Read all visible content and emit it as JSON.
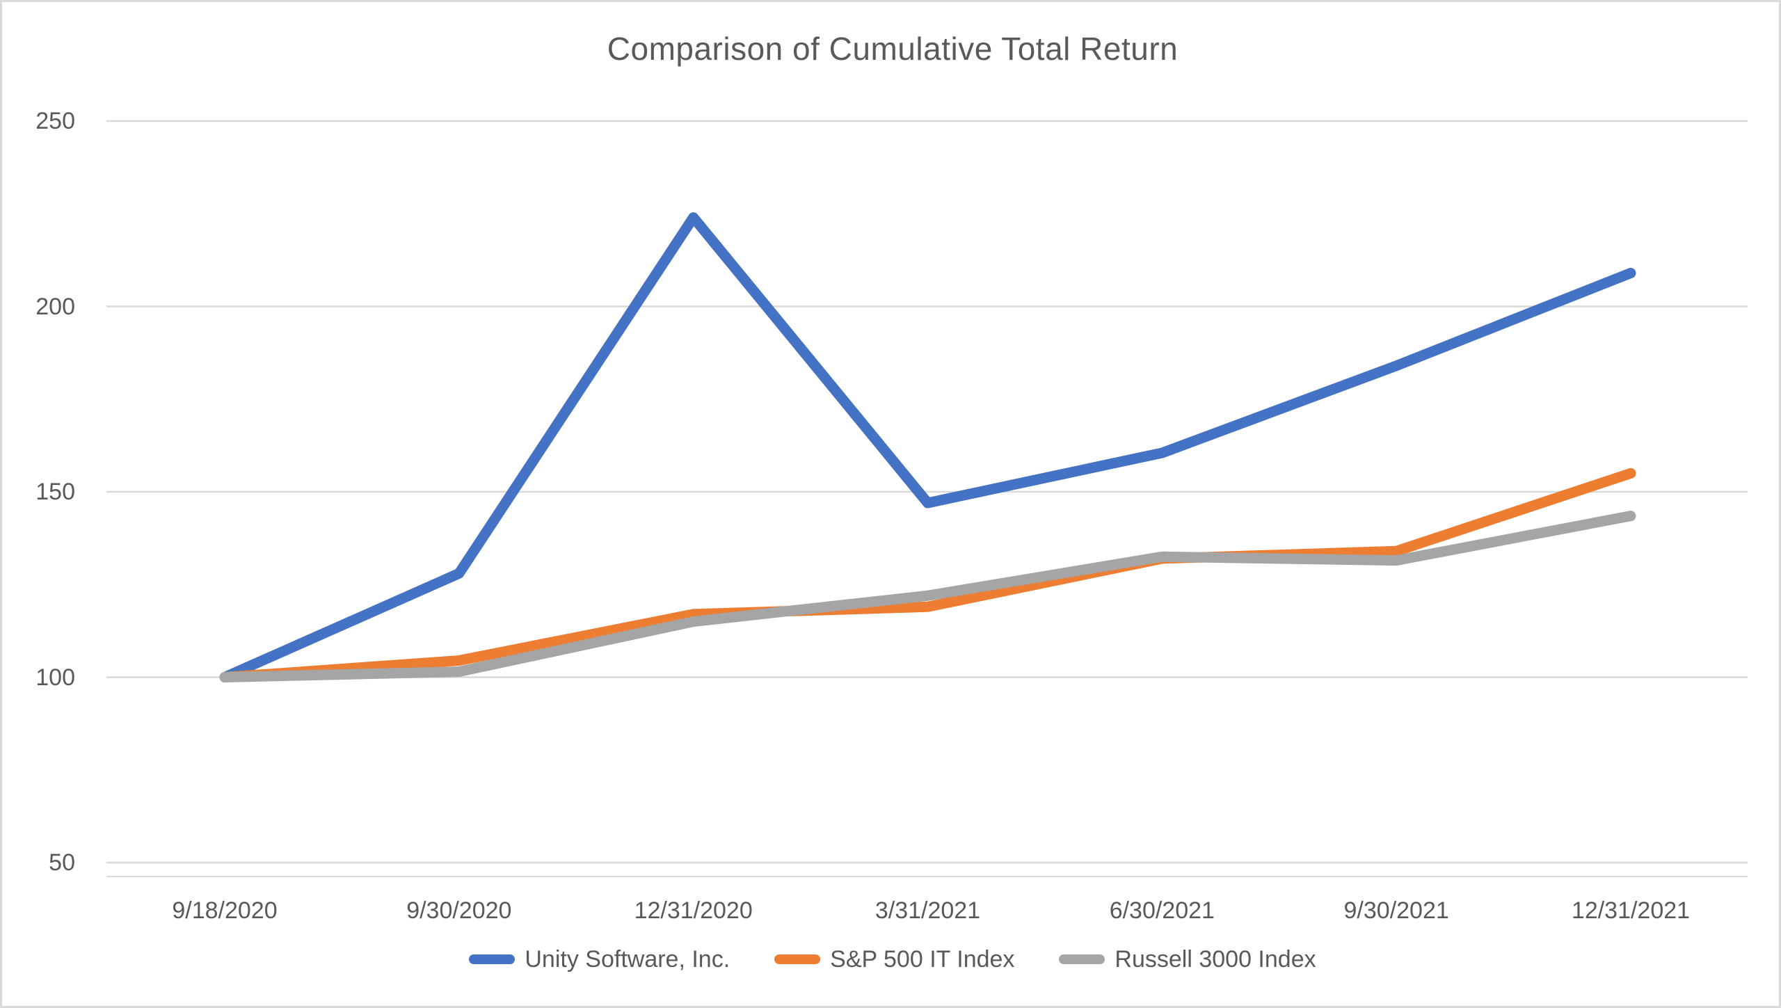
{
  "title": "Comparison of Cumulative Total Return",
  "colors": {
    "text": "#595959",
    "gridline": "#D9D9D9",
    "axis_line": "#D9D9D9",
    "frame_border": "#D9D9D9",
    "background": "#FFFFFF",
    "unity_blue": "#4472C4",
    "sp500_orange": "#ED7D31",
    "russell_gray": "#A5A5A5"
  },
  "chart_data": {
    "type": "line",
    "title": "Comparison of Cumulative Total Return",
    "xlabel": "",
    "ylabel": "",
    "categories": [
      "9/18/2020",
      "9/30/2020",
      "12/31/2020",
      "3/31/2021",
      "6/30/2021",
      "9/30/2021",
      "12/31/2021"
    ],
    "series": [
      {
        "name": "Unity Software, Inc.",
        "color": "#4472C4",
        "values": [
          100,
          128,
          224,
          147,
          160.5,
          184,
          209
        ]
      },
      {
        "name": "S&P 500 IT Index",
        "color": "#ED7D31",
        "values": [
          100,
          104.5,
          117,
          119,
          132,
          134,
          155
        ]
      },
      {
        "name": "Russell 3000 Index",
        "color": "#A5A5A5",
        "values": [
          100,
          101.5,
          115,
          122,
          132.5,
          131.5,
          143.5
        ]
      }
    ],
    "yticks": [
      50,
      100,
      150,
      200,
      250
    ],
    "ylim": [
      50,
      250
    ],
    "grid": true,
    "legend_position": "bottom"
  }
}
